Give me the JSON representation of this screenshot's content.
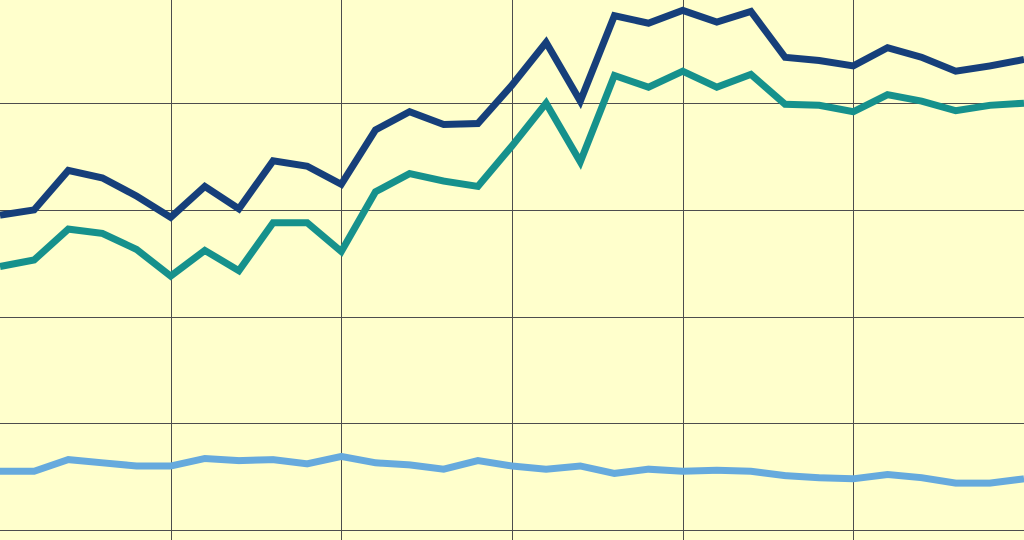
{
  "chart_data": {
    "type": "line",
    "title": "",
    "xlabel": "",
    "ylabel": "",
    "grid": true,
    "legend": "none",
    "background_color": "#ffffcc",
    "grid_color": "#4d4d4d",
    "x": [
      0,
      1,
      2,
      3,
      4,
      5,
      6,
      7,
      8,
      9,
      10,
      11,
      12,
      13,
      14,
      15,
      16,
      17,
      18,
      19,
      20,
      21,
      22,
      23,
      24,
      25,
      26,
      27,
      28,
      29,
      30
    ],
    "xlim": [
      0,
      30
    ],
    "ylim": [
      0,
      5
    ],
    "x_gridlines": [
      5,
      10,
      15,
      20,
      25
    ],
    "y_gridlines": [
      1,
      2,
      3,
      4,
      5
    ],
    "series": [
      {
        "color": "#163f7a",
        "values": [
          2.95,
          3.0,
          3.37,
          3.3,
          3.13,
          2.93,
          3.22,
          3.01,
          3.46,
          3.41,
          3.24,
          3.75,
          3.92,
          3.8,
          3.81,
          4.17,
          4.57,
          4.02,
          4.82,
          4.75,
          4.87,
          4.76,
          4.86,
          4.43,
          4.4,
          4.35,
          4.52,
          4.43,
          4.3,
          4.35,
          4.41
        ]
      },
      {
        "color": "#16918c",
        "values": [
          2.47,
          2.53,
          2.82,
          2.78,
          2.63,
          2.38,
          2.62,
          2.43,
          2.88,
          2.88,
          2.61,
          3.17,
          3.34,
          3.27,
          3.22,
          3.6,
          4.0,
          3.45,
          4.26,
          4.15,
          4.3,
          4.15,
          4.27,
          3.99,
          3.98,
          3.92,
          4.08,
          4.02,
          3.93,
          3.98,
          4.0
        ]
      },
      {
        "color": "#66aadd",
        "values": [
          0.55,
          0.55,
          0.66,
          0.63,
          0.6,
          0.6,
          0.67,
          0.65,
          0.66,
          0.62,
          0.69,
          0.63,
          0.61,
          0.57,
          0.65,
          0.6,
          0.57,
          0.6,
          0.53,
          0.57,
          0.55,
          0.56,
          0.55,
          0.51,
          0.49,
          0.48,
          0.52,
          0.49,
          0.44,
          0.44,
          0.48
        ]
      }
    ]
  }
}
